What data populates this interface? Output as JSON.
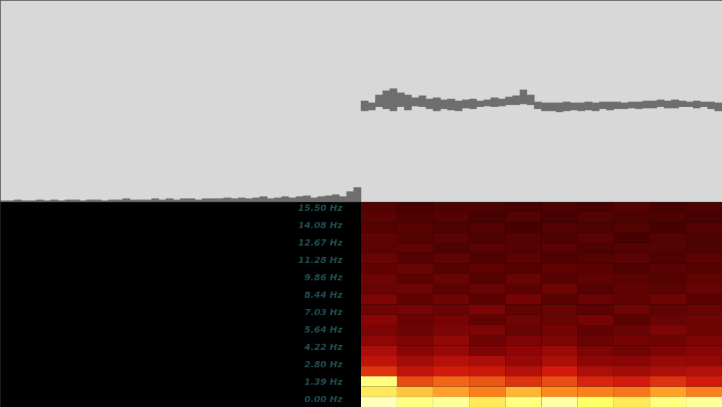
{
  "chart_data": [
    {
      "type": "waveform",
      "color": "#6e6e6e",
      "tick_labels": false,
      "xlim": [
        0,
        100
      ],
      "ylim": [
        -1,
        1
      ],
      "x": [
        0,
        1,
        2,
        3,
        4,
        5,
        6,
        7,
        8,
        9,
        10,
        11,
        12,
        13,
        14,
        15,
        16,
        17,
        18,
        19,
        20,
        21,
        22,
        23,
        24,
        25,
        26,
        27,
        28,
        29,
        30,
        31,
        32,
        33,
        34,
        35,
        36,
        37,
        38,
        39,
        40,
        41,
        42,
        43,
        44,
        45,
        46,
        47,
        48,
        49,
        50,
        51,
        52,
        53,
        54,
        55,
        56,
        57,
        58,
        59,
        60,
        61,
        62,
        63,
        64,
        65,
        66,
        67,
        68,
        69,
        70,
        71,
        72,
        73,
        74,
        75,
        76,
        77,
        78,
        79,
        80,
        81,
        82,
        83,
        84,
        85,
        86,
        87,
        88,
        89,
        90,
        91,
        92,
        93,
        94,
        95,
        96,
        97,
        98,
        99
      ],
      "upper": [
        -0.99,
        -0.99,
        -0.98,
        -0.99,
        -0.99,
        -0.98,
        -0.99,
        -0.98,
        -0.99,
        -0.98,
        -0.98,
        -0.99,
        -0.98,
        -0.98,
        -0.99,
        -0.98,
        -0.98,
        -0.97,
        -0.98,
        -0.98,
        -0.98,
        -0.97,
        -0.98,
        -0.97,
        -0.98,
        -0.97,
        -0.97,
        -0.98,
        -0.97,
        -0.97,
        -0.97,
        -0.96,
        -0.97,
        -0.96,
        -0.97,
        -0.96,
        -0.95,
        -0.97,
        -0.96,
        -0.95,
        -0.96,
        -0.95,
        -0.94,
        -0.96,
        -0.95,
        -0.94,
        -0.93,
        -0.95,
        -0.9,
        -0.86,
        0.0,
        -0.02,
        0.06,
        0.1,
        0.12,
        0.08,
        0.06,
        0.03,
        0.05,
        0.02,
        0.03,
        0.01,
        0.02,
        0.0,
        0.01,
        0.02,
        0.0,
        0.01,
        0.03,
        0.02,
        0.04,
        0.05,
        0.11,
        0.06,
        -0.01,
        -0.02,
        -0.02,
        -0.02,
        -0.01,
        -0.02,
        -0.02,
        -0.01,
        -0.02,
        -0.01,
        -0.01,
        -0.01,
        -0.02,
        -0.01,
        -0.01,
        0.0,
        0.0,
        0.01,
        0.0,
        0.01,
        0.0,
        -0.01,
        0.0,
        -0.01,
        -0.01,
        -0.02
      ],
      "lower": [
        -1,
        -1,
        -1,
        -1,
        -1,
        -1,
        -1,
        -1,
        -1,
        -1,
        -1,
        -1,
        -1,
        -1,
        -1,
        -1,
        -1,
        -1,
        -1,
        -1,
        -1,
        -1,
        -1,
        -1,
        -1,
        -1,
        -1,
        -1,
        -1,
        -1,
        -1,
        -1,
        -1,
        -1,
        -1,
        -1,
        -1,
        -1,
        -1,
        -1,
        -1,
        -1,
        -1,
        -1,
        -1,
        -1,
        -1,
        -1,
        -1,
        -1,
        -0.1,
        -0.09,
        -0.06,
        -0.08,
        -0.1,
        -0.06,
        -0.09,
        -0.05,
        -0.06,
        -0.08,
        -0.1,
        -0.08,
        -0.09,
        -0.1,
        -0.07,
        -0.08,
        -0.06,
        -0.05,
        -0.06,
        -0.05,
        -0.04,
        -0.04,
        -0.03,
        -0.04,
        -0.08,
        -0.1,
        -0.1,
        -0.11,
        -0.1,
        -0.09,
        -0.1,
        -0.09,
        -0.1,
        -0.08,
        -0.09,
        -0.08,
        -0.08,
        -0.07,
        -0.08,
        -0.07,
        -0.07,
        -0.06,
        -0.07,
        -0.07,
        -0.06,
        -0.06,
        -0.07,
        -0.06,
        -0.08,
        -0.1
      ]
    },
    {
      "type": "heatmap",
      "tick_labels": "y",
      "xlim": [
        0,
        100
      ],
      "ylim": [
        -0.68,
        15.95
      ],
      "yticks": [
        {
          "value": 15.5,
          "label": "15.50 Hz"
        },
        {
          "value": 14.08,
          "label": "14.08 Hz"
        },
        {
          "value": 12.67,
          "label": "12.67 Hz"
        },
        {
          "value": 11.28,
          "label": "11.28 Hz"
        },
        {
          "value": 9.86,
          "label": "9.86 Hz"
        },
        {
          "value": 8.44,
          "label": "8.44 Hz"
        },
        {
          "value": 7.03,
          "label": "7.03 Hz"
        },
        {
          "value": 5.64,
          "label": "5.64 Hz"
        },
        {
          "value": 4.22,
          "label": "4.22 Hz"
        },
        {
          "value": 2.8,
          "label": "2.80 Hz"
        },
        {
          "value": 1.39,
          "label": "1.39 Hz"
        },
        {
          "value": 0,
          "label": "0.00 Hz"
        }
      ],
      "x_edges": [
        50,
        55,
        60,
        65,
        70,
        75,
        80,
        85,
        90,
        95,
        100
      ],
      "y_edges": [
        -0.68,
        0.15,
        0.98,
        1.81,
        2.64,
        3.48,
        4.31,
        5.14,
        5.97,
        6.8,
        7.64,
        8.47,
        9.3,
        10.13,
        10.96,
        11.8,
        12.63,
        13.46,
        14.29,
        15.12,
        15.95
      ],
      "color_range": [
        0,
        1
      ],
      "cells": [
        [
          0.95,
          0.9,
          0.92,
          0.85,
          0.9,
          0.93,
          0.88,
          0.85,
          0.9,
          0.92
        ],
        [
          0.85,
          0.8,
          0.75,
          0.7,
          0.78,
          0.72,
          0.7,
          0.68,
          0.75,
          0.7
        ],
        [
          0.9,
          0.6,
          0.65,
          0.62,
          0.55,
          0.6,
          0.52,
          0.5,
          0.55,
          0.5
        ],
        [
          0.55,
          0.45,
          0.5,
          0.48,
          0.42,
          0.5,
          0.4,
          0.38,
          0.4,
          0.42
        ],
        [
          0.45,
          0.38,
          0.42,
          0.4,
          0.35,
          0.4,
          0.33,
          0.32,
          0.35,
          0.34
        ],
        [
          0.4,
          0.32,
          0.35,
          0.3,
          0.33,
          0.36,
          0.3,
          0.28,
          0.3,
          0.32
        ],
        [
          0.33,
          0.3,
          0.34,
          0.28,
          0.3,
          0.3,
          0.27,
          0.29,
          0.28,
          0.3
        ],
        [
          0.3,
          0.28,
          0.3,
          0.3,
          0.27,
          0.29,
          0.26,
          0.27,
          0.3,
          0.28
        ],
        [
          0.32,
          0.27,
          0.29,
          0.26,
          0.28,
          0.27,
          0.29,
          0.25,
          0.27,
          0.28
        ],
        [
          0.28,
          0.29,
          0.27,
          0.3,
          0.26,
          0.27,
          0.25,
          0.28,
          0.26,
          0.27
        ],
        [
          0.3,
          0.26,
          0.28,
          0.25,
          0.29,
          0.25,
          0.27,
          0.26,
          0.28,
          0.25
        ],
        [
          0.27,
          0.28,
          0.25,
          0.27,
          0.25,
          0.28,
          0.24,
          0.26,
          0.25,
          0.27
        ],
        [
          0.28,
          0.25,
          0.27,
          0.24,
          0.27,
          0.24,
          0.26,
          0.25,
          0.24,
          0.26
        ],
        [
          0.26,
          0.27,
          0.24,
          0.26,
          0.24,
          0.26,
          0.25,
          0.23,
          0.25,
          0.24
        ],
        [
          0.27,
          0.24,
          0.26,
          0.23,
          0.25,
          0.23,
          0.24,
          0.25,
          0.23,
          0.25
        ],
        [
          0.25,
          0.26,
          0.23,
          0.25,
          0.24,
          0.25,
          0.23,
          0.24,
          0.24,
          0.23
        ],
        [
          0.26,
          0.24,
          0.25,
          0.23,
          0.24,
          0.23,
          0.25,
          0.22,
          0.24,
          0.23
        ],
        [
          0.24,
          0.25,
          0.23,
          0.24,
          0.22,
          0.24,
          0.23,
          0.24,
          0.22,
          0.24
        ],
        [
          0.25,
          0.23,
          0.24,
          0.22,
          0.24,
          0.22,
          0.24,
          0.23,
          0.23,
          0.22
        ],
        [
          0.24,
          0.22,
          0.23,
          0.23,
          0.22,
          0.23,
          0.22,
          0.24,
          0.22,
          0.23
        ]
      ]
    }
  ]
}
